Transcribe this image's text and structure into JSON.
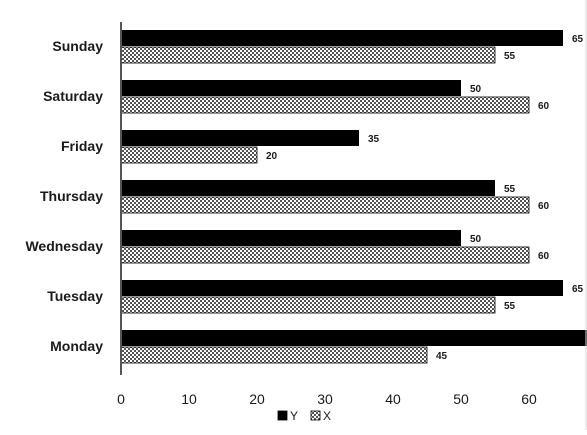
{
  "chart_data": {
    "type": "bar",
    "orientation": "horizontal",
    "categories": [
      "Sunday",
      "Saturday",
      "Friday",
      "Thursday",
      "Wednesday",
      "Tuesday",
      "Monday"
    ],
    "series": [
      {
        "name": "Y",
        "values": [
          65,
          50,
          35,
          55,
          50,
          65,
          70
        ],
        "color": "#000000",
        "pattern": "solid"
      },
      {
        "name": "X",
        "values": [
          55,
          60,
          20,
          60,
          60,
          55,
          45
        ],
        "color": "#d9d9d9",
        "pattern": "checker"
      }
    ],
    "xlim": [
      0,
      80
    ],
    "xticks": [
      0,
      10,
      20,
      30,
      40,
      50,
      60,
      70,
      80
    ],
    "grid": false,
    "legend_position": "bottom"
  }
}
